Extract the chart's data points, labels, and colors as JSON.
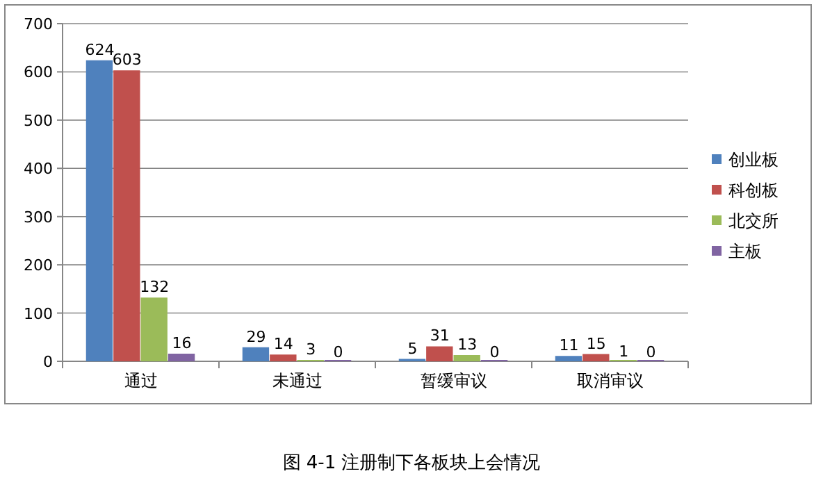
{
  "chart_data": {
    "type": "bar",
    "categories": [
      "通过",
      "未通过",
      "暂缓审议",
      "取消审议"
    ],
    "series": [
      {
        "name": "创业板",
        "color": "#4f81bd",
        "values": [
          624,
          29,
          5,
          11
        ]
      },
      {
        "name": "科创板",
        "color": "#c0504d",
        "values": [
          603,
          14,
          31,
          15
        ]
      },
      {
        "name": "北交所",
        "color": "#9bbb59",
        "values": [
          132,
          3,
          13,
          1
        ]
      },
      {
        "name": "主板",
        "color": "#8064a2",
        "values": [
          16,
          0,
          0,
          0
        ]
      }
    ],
    "ylim": [
      0,
      700
    ],
    "yticks": [
      0,
      100,
      200,
      300,
      400,
      500,
      600,
      700
    ],
    "grid": "y",
    "legend": "right",
    "data_labels": true,
    "annotations": [
      "图 4-1  注册制下各板块上会情况"
    ]
  }
}
